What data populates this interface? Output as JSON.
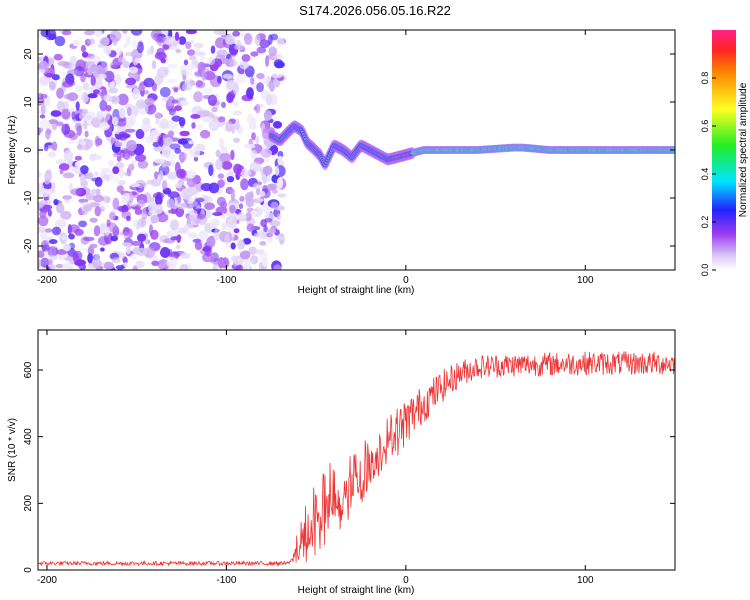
{
  "title": "S174.2026.056.05.16.R22",
  "chart_data": [
    {
      "type": "heatmap",
      "name": "spectrogram",
      "xlabel": "Height of straight line (km)",
      "ylabel": "Frequency (Hz)",
      "xlim": [
        -205,
        150
      ],
      "ylim": [
        -25,
        25
      ],
      "xticks": [
        -200,
        -100,
        0,
        100
      ],
      "yticks": [
        -20,
        -10,
        0,
        10,
        20
      ],
      "noise_region_x": [
        -205,
        -72
      ],
      "signal_track": {
        "x": [
          -75,
          -70,
          -65,
          -62,
          -58,
          -55,
          -52,
          -48,
          -45,
          -40,
          -35,
          -30,
          -25,
          -20,
          -15,
          -10,
          -5,
          0,
          5,
          10,
          20,
          40,
          60,
          65,
          80,
          100,
          120,
          150
        ],
        "frequency": [
          3,
          2,
          4,
          5,
          4,
          1.5,
          0.5,
          -1,
          -3,
          1,
          0,
          -1.5,
          1,
          0,
          -1,
          -2,
          -1.5,
          -1,
          -0.5,
          0,
          0,
          0,
          0.5,
          0.5,
          0,
          0,
          0,
          0
        ]
      },
      "colorbar": {
        "label": "Normalized spectral amplitude",
        "range": [
          0,
          1
        ],
        "ticks": [
          0.0,
          0.2,
          0.4,
          0.6,
          0.8
        ],
        "tick_labels": [
          "0.0",
          "0.2",
          "0.4",
          "0.6",
          "0.8"
        ]
      }
    },
    {
      "type": "line",
      "name": "snr",
      "xlabel": "Height of straight line (km)",
      "ylabel": "SNR (10 * v/v)",
      "xlim": [
        -205,
        150
      ],
      "ylim": [
        0,
        720
      ],
      "xticks": [
        -200,
        -100,
        0,
        100
      ],
      "yticks": [
        0,
        200,
        400,
        600
      ],
      "color": "#ee3333",
      "envelope": {
        "x": [
          -205,
          -65,
          -58,
          -50,
          -40,
          -30,
          -20,
          -10,
          0,
          10,
          20,
          30,
          40,
          60,
          100,
          150
        ],
        "baseline": [
          20,
          20,
          70,
          140,
          175,
          240,
          300,
          380,
          445,
          500,
          550,
          590,
          610,
          615,
          620,
          620
        ],
        "spread": [
          10,
          10,
          90,
          170,
          170,
          130,
          110,
          90,
          80,
          65,
          55,
          45,
          40,
          40,
          40,
          40
        ]
      }
    }
  ]
}
